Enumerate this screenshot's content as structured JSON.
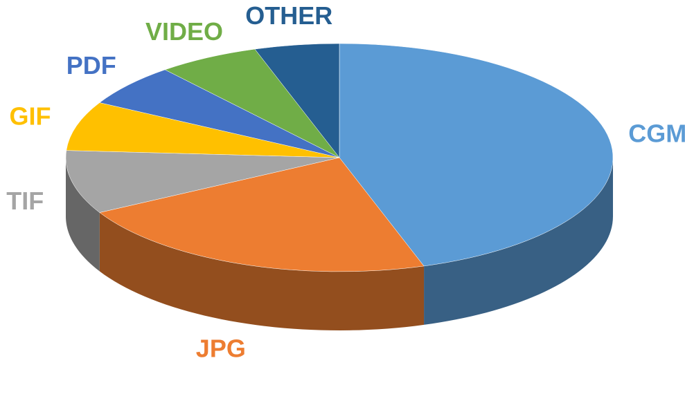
{
  "chart_data": {
    "type": "pie",
    "categories": [
      "CGM",
      "JPG",
      "TIF",
      "GIF",
      "PDF",
      "VIDEO",
      "OTHER"
    ],
    "values": [
      45,
      22,
      9,
      7,
      6,
      6,
      5
    ],
    "colors": [
      "#5b9bd5",
      "#ed7d31",
      "#a5a5a5",
      "#ffc000",
      "#4472c4",
      "#70ad47",
      "#255e91"
    ]
  }
}
